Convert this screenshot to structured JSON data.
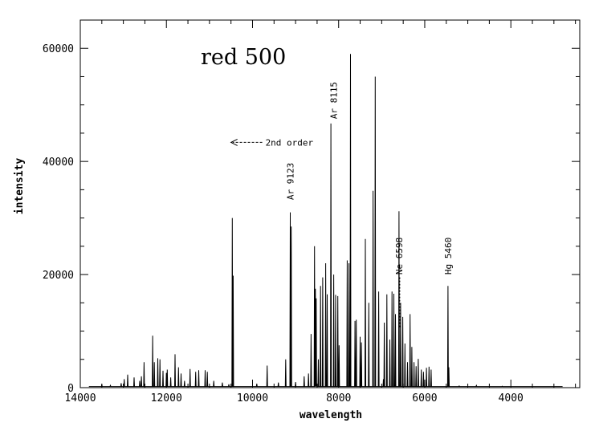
{
  "chart_data": {
    "type": "line",
    "title": "red 500",
    "xlabel": "wavelength",
    "ylabel": "intensity",
    "xlim": [
      14000,
      2400
    ],
    "ylim": [
      0,
      65000
    ],
    "x_ticks": [
      14000,
      12000,
      10000,
      8000,
      6000,
      4000
    ],
    "x_tick_labels": [
      "14000",
      "12000",
      "10000",
      "8000",
      "6000",
      "4000"
    ],
    "y_ticks": [
      0,
      20000,
      40000,
      60000
    ],
    "y_tick_labels": [
      "0",
      "20000",
      "40000",
      "60000"
    ],
    "grid": false,
    "legend": "none",
    "series": [
      {
        "peaks": [
          [
            13500,
            600
          ],
          [
            13300,
            400
          ],
          [
            13050,
            800
          ],
          [
            12980,
            1500
          ],
          [
            12900,
            2300
          ],
          [
            12750,
            1800
          ],
          [
            12620,
            1200
          ],
          [
            12580,
            2000
          ],
          [
            12520,
            4500
          ],
          [
            12320,
            9200
          ],
          [
            12280,
            4500
          ],
          [
            12200,
            5200
          ],
          [
            12150,
            5000
          ],
          [
            12080,
            3000
          ],
          [
            12000,
            2600
          ],
          [
            11980,
            3200
          ],
          [
            11900,
            1800
          ],
          [
            11800,
            5900
          ],
          [
            11720,
            3600
          ],
          [
            11660,
            2500
          ],
          [
            11580,
            1200
          ],
          [
            11450,
            3300
          ],
          [
            11320,
            2800
          ],
          [
            11250,
            3100
          ],
          [
            11100,
            3100
          ],
          [
            11050,
            2800
          ],
          [
            10900,
            1200
          ],
          [
            10700,
            900
          ],
          [
            10550,
            600
          ],
          [
            10470,
            30000
          ],
          [
            10450,
            19800
          ],
          [
            9900,
            700
          ],
          [
            9660,
            3900
          ],
          [
            9400,
            900
          ],
          [
            9230,
            5000
          ],
          [
            9123,
            31000
          ],
          [
            9100,
            28500
          ],
          [
            9000,
            1000
          ],
          [
            8800,
            2000
          ],
          [
            8700,
            2500
          ],
          [
            8640,
            9500
          ],
          [
            8560,
            25000
          ],
          [
            8540,
            17500
          ],
          [
            8520,
            15800
          ],
          [
            8470,
            5000
          ],
          [
            8420,
            18000
          ],
          [
            8370,
            19500
          ],
          [
            8300,
            22000
          ],
          [
            8265,
            16500
          ],
          [
            8180,
            46700
          ],
          [
            8115,
            20000
          ],
          [
            8070,
            16400
          ],
          [
            8020,
            16200
          ],
          [
            7990,
            7500
          ],
          [
            7800,
            22500
          ],
          [
            7760,
            22000
          ],
          [
            7725,
            59000
          ],
          [
            7620,
            11800
          ],
          [
            7590,
            12000
          ],
          [
            7500,
            9000
          ],
          [
            7470,
            8000
          ],
          [
            7380,
            26300
          ],
          [
            7300,
            15000
          ],
          [
            7200,
            34800
          ],
          [
            7150,
            55000
          ],
          [
            7070,
            17000
          ],
          [
            6960,
            1500
          ],
          [
            6940,
            11500
          ],
          [
            6880,
            16500
          ],
          [
            6810,
            8500
          ],
          [
            6760,
            17000
          ],
          [
            6717,
            16600
          ],
          [
            6680,
            13000
          ],
          [
            6598,
            31200
          ],
          [
            6560,
            15000
          ],
          [
            6510,
            12500
          ],
          [
            6460,
            7800
          ],
          [
            6400,
            4500
          ],
          [
            6340,
            13000
          ],
          [
            6300,
            7200
          ],
          [
            6250,
            4500
          ],
          [
            6200,
            3800
          ],
          [
            6150,
            5100
          ],
          [
            6080,
            3200
          ],
          [
            6030,
            2800
          ],
          [
            5960,
            3500
          ],
          [
            5900,
            3700
          ],
          [
            5852,
            3200
          ],
          [
            5460,
            18000
          ],
          [
            5440,
            3600
          ],
          [
            5200,
            300
          ],
          [
            4800,
            400
          ],
          [
            4200,
            250
          ],
          [
            3600,
            200
          ]
        ]
      }
    ],
    "annotations": [
      {
        "text": "Ar 8115",
        "x": 8115,
        "y": 47500
      },
      {
        "text": "Ar 9123",
        "x": 9123,
        "y": 33200
      },
      {
        "text": "Ne 6598",
        "x": 6598,
        "y": 20000
      },
      {
        "text": "Hg 5460",
        "x": 5460,
        "y": 20000
      },
      {
        "text": "2nd order",
        "x": 9700,
        "y": 42800,
        "arrow_to_x": 10500
      }
    ]
  }
}
